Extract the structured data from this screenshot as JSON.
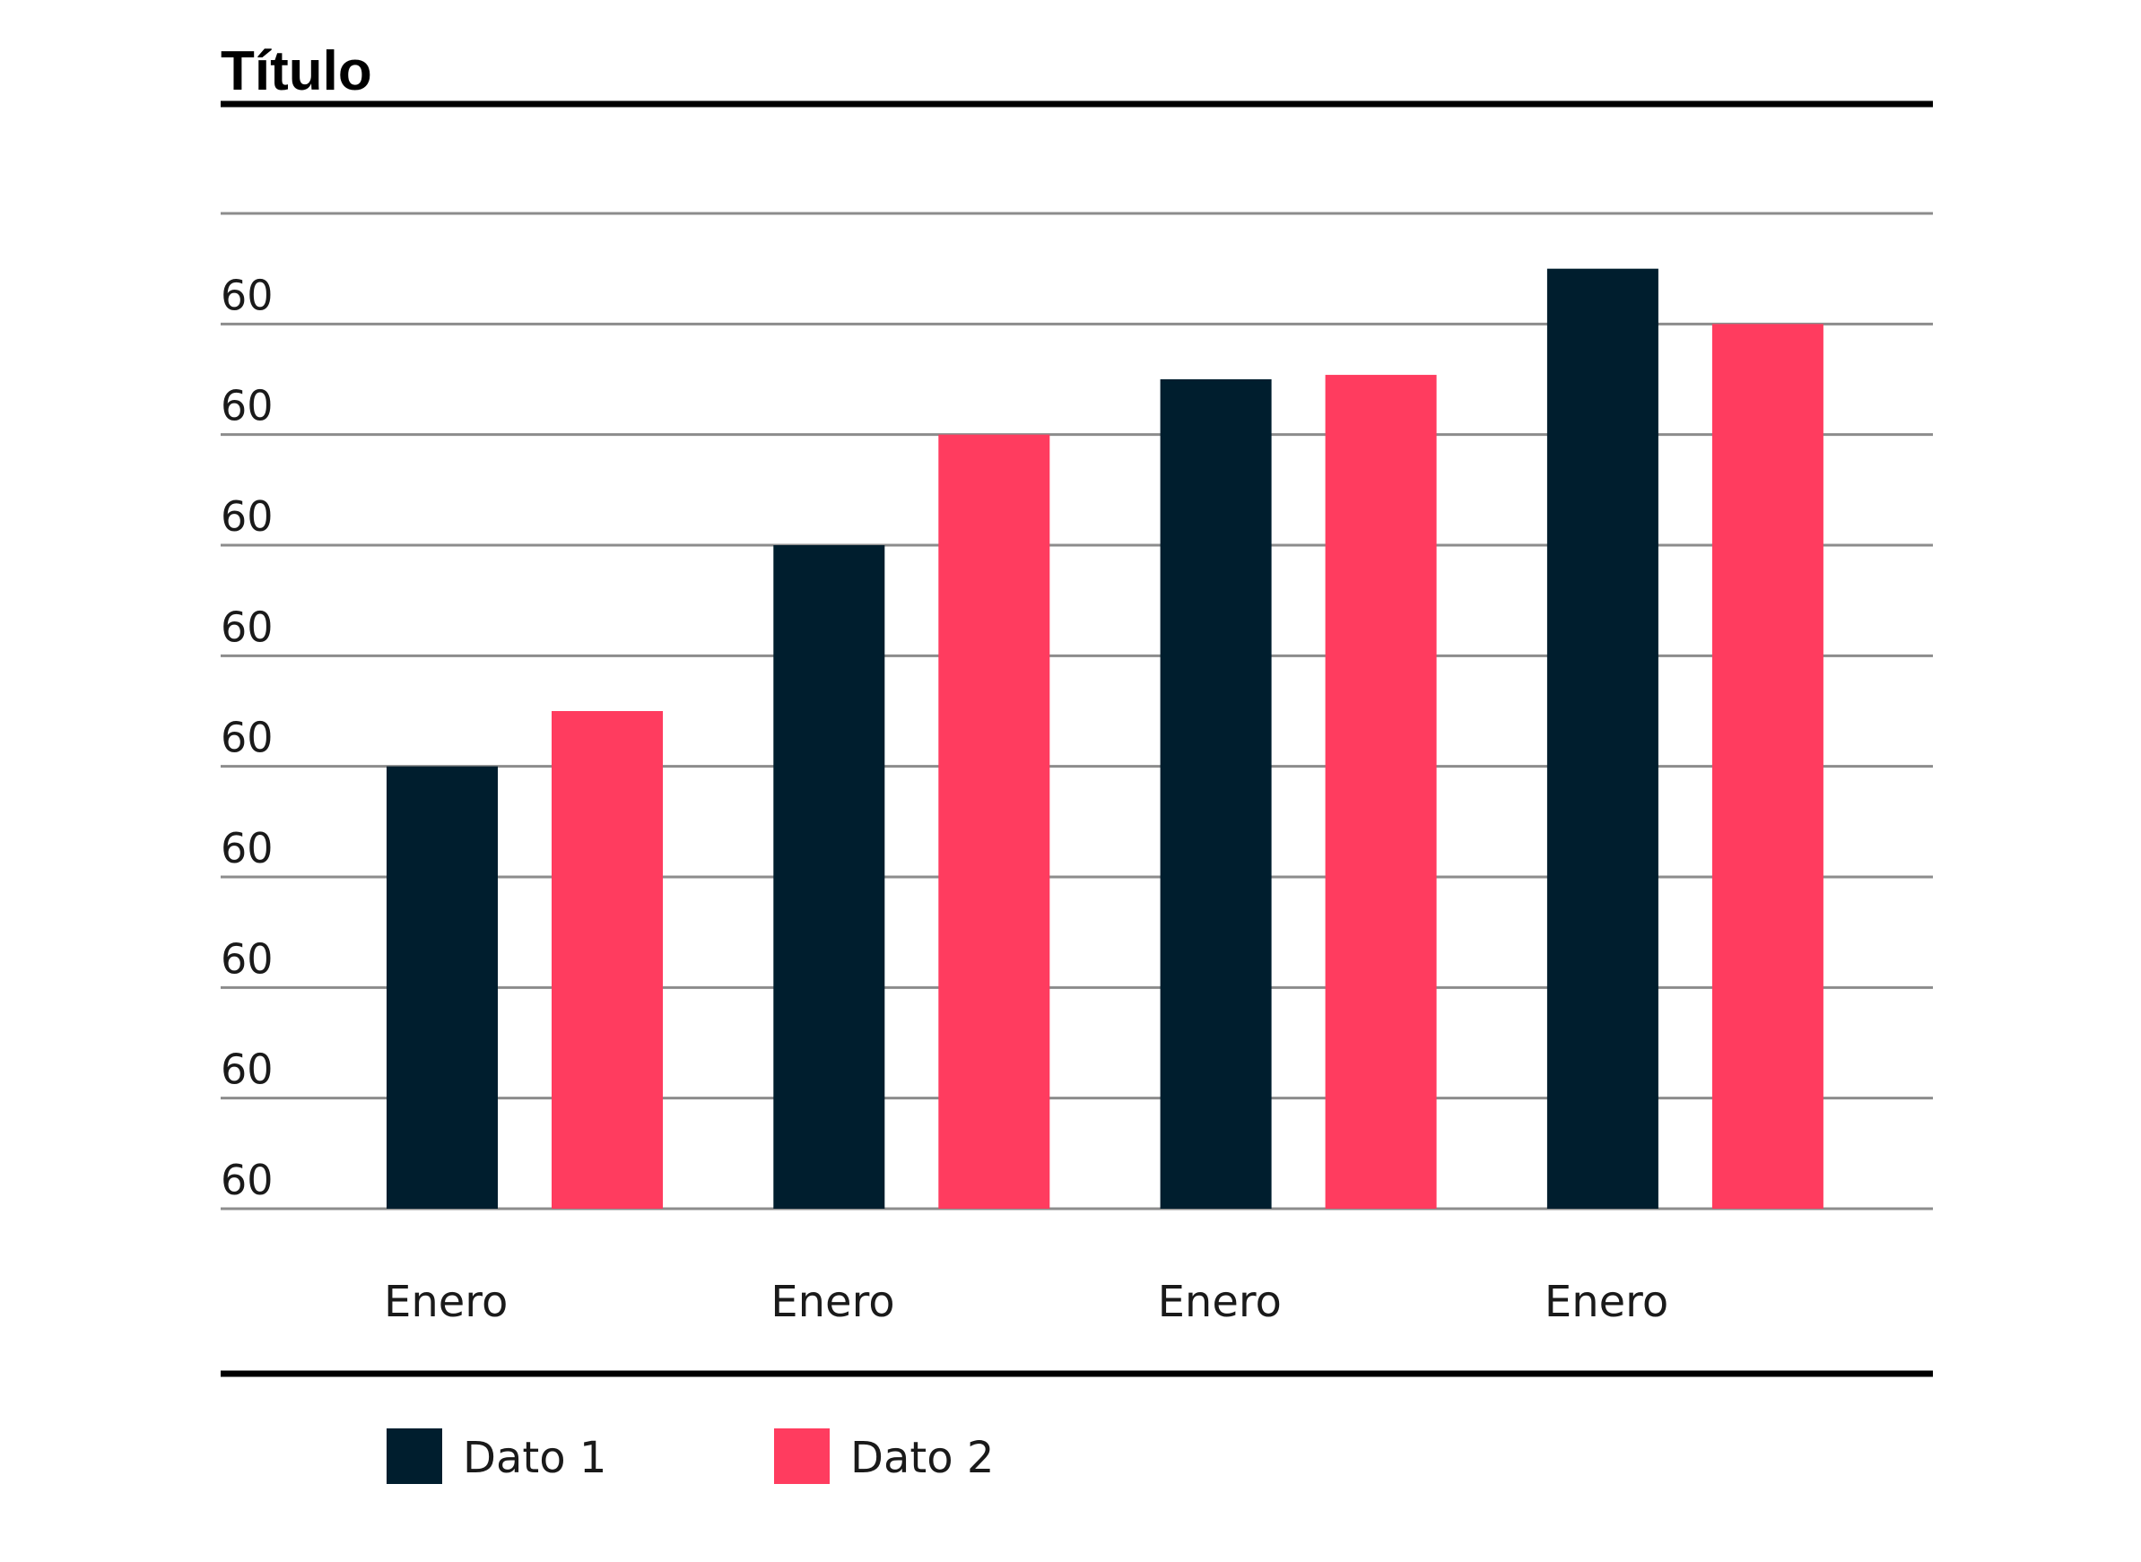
{
  "chart_data": {
    "type": "bar",
    "title": "Título",
    "xlabel": "",
    "ylabel": "",
    "categories": [
      "Enero",
      "Enero",
      "Enero",
      "Enero"
    ],
    "y_tick_labels": [
      "60",
      "60",
      "60",
      "60",
      "60",
      "60",
      "60",
      "60",
      "60"
    ],
    "grid_levels": 9,
    "ylim": [
      0,
      9
    ],
    "series": [
      {
        "name": "Dato 1",
        "color": "#001e2e",
        "values": [
          4.0,
          6.0,
          7.5,
          8.5
        ]
      },
      {
        "name": "Dato 2",
        "color": "#ff3c5f",
        "values": [
          4.5,
          7.0,
          7.54,
          8.0
        ]
      }
    ],
    "grid": true,
    "legend_position": "bottom-left"
  }
}
